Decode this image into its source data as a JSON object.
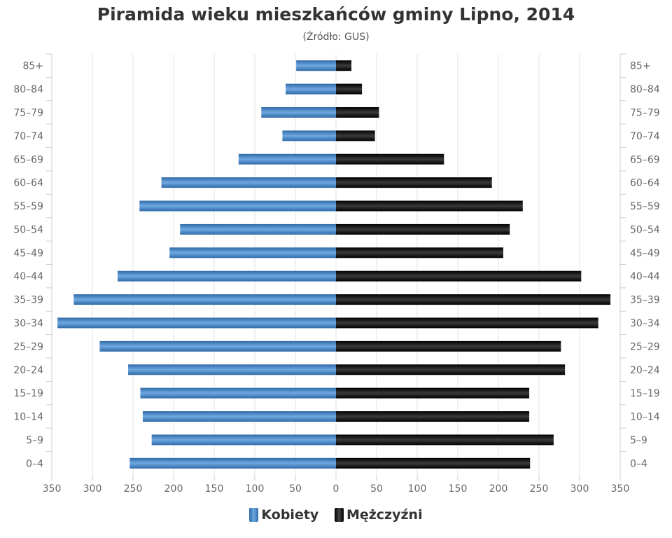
{
  "chart_data": {
    "type": "bar",
    "orientation": "horizontal",
    "title": "Piramida wieku mieszkańców gminy Lipno, 2014",
    "subtitle": "(Źródło: GUS)",
    "categories": [
      "85+",
      "80-84",
      "75-79",
      "70-74",
      "65-69",
      "60-64",
      "55-59",
      "50-54",
      "45-49",
      "40-44",
      "35-39",
      "30-34",
      "25-29",
      "20-24",
      "15-19",
      "10-14",
      "5-9",
      "0-4"
    ],
    "series": [
      {
        "name": "Kobiety",
        "color": "#4a86c5",
        "values": [
          49,
          62,
          92,
          66,
          120,
          215,
          242,
          192,
          205,
          269,
          323,
          343,
          291,
          256,
          241,
          238,
          227,
          254
        ]
      },
      {
        "name": "Mężczyźni",
        "color": "#111111",
        "values": [
          19,
          32,
          53,
          48,
          133,
          192,
          230,
          214,
          206,
          302,
          338,
          323,
          277,
          282,
          238,
          238,
          268,
          239
        ]
      }
    ],
    "xlim": [
      -350,
      350
    ],
    "xticks": [
      "350",
      "300",
      "250",
      "200",
      "150",
      "100",
      "50",
      "0",
      "50",
      "100",
      "150",
      "200",
      "250",
      "300",
      "350"
    ],
    "grid": true,
    "legend_position": "bottom"
  }
}
